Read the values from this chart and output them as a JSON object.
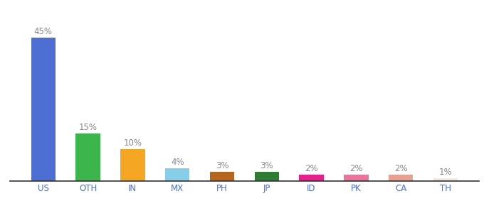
{
  "categories": [
    "US",
    "OTH",
    "IN",
    "MX",
    "PH",
    "JP",
    "ID",
    "PK",
    "CA",
    "TH"
  ],
  "values": [
    45,
    15,
    10,
    4,
    3,
    3,
    2,
    2,
    2,
    1
  ],
  "bar_colors": [
    "#4d6fd4",
    "#3cb54a",
    "#f5a623",
    "#87ceeb",
    "#b5651d",
    "#2e7d32",
    "#e91e8c",
    "#e8759a",
    "#e8a090",
    "#f0ead6"
  ],
  "labels": [
    "45%",
    "15%",
    "10%",
    "4%",
    "3%",
    "3%",
    "2%",
    "2%",
    "2%",
    "1%"
  ],
  "label_color": "#888888",
  "background_color": "#ffffff",
  "ylim": [
    0,
    52
  ],
  "bar_width": 0.55,
  "label_fontsize": 8.5,
  "tick_fontsize": 8.5,
  "tick_color": "#4d6fd4"
}
